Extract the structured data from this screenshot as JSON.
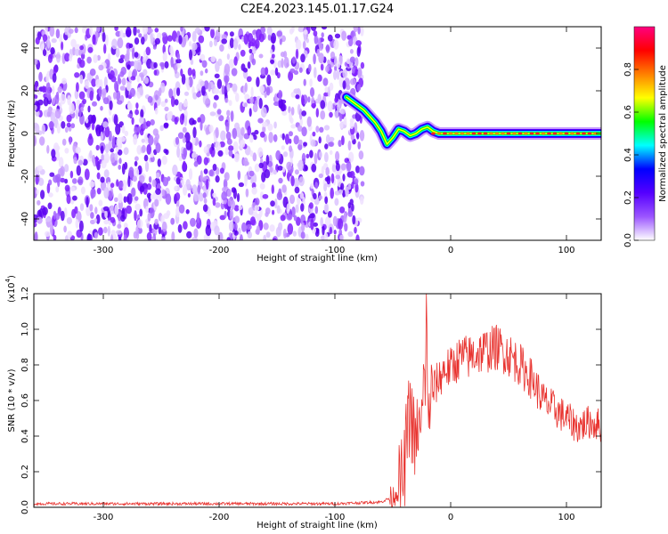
{
  "figure": {
    "title": "C2E4.2023.145.01.17.G24"
  },
  "chart_data": [
    {
      "type": "heatmap",
      "xlabel": "Height of straight line (km)",
      "ylabel": "Frequency (Hz)",
      "xlim": [
        -360,
        130
      ],
      "ylim": [
        -50,
        50
      ],
      "xticks": [
        -300,
        -200,
        -100,
        0,
        100
      ],
      "yticks": [
        -40,
        -20,
        0,
        20,
        40
      ],
      "noise_region_x": [
        -360,
        -80
      ],
      "signal_track": {
        "x": [
          -90,
          -85,
          -80,
          -75,
          -70,
          -65,
          -60,
          -55,
          -50,
          -45,
          -40,
          -35,
          -30,
          -25,
          -20,
          -15,
          -10,
          -5,
          0,
          20,
          40,
          60,
          80,
          100,
          120,
          130
        ],
        "y": [
          17,
          15,
          13,
          11,
          8,
          5,
          1,
          -5,
          -2,
          2,
          1,
          -1,
          0,
          2,
          3,
          1,
          0,
          0,
          0,
          0,
          0,
          0,
          0,
          0,
          0,
          0
        ]
      },
      "colorbar": {
        "label": "Normalized spectral amplitude",
        "range": [
          0,
          1
        ],
        "ticks": [
          "0.0",
          "0.2",
          "0.4",
          "0.6",
          "0.8"
        ],
        "colors": [
          "#ffffff",
          "#9b55ff",
          "#5500ff",
          "#0000ff",
          "#00ffff",
          "#00ff00",
          "#ffff00",
          "#ff8000",
          "#ff0000",
          "#ff0080"
        ]
      }
    },
    {
      "type": "line",
      "xlabel": "Height of straight line (km)",
      "ylabel": "SNR (10 * v/v)",
      "yscale_label": "(x10",
      "yscale_exp": "4",
      "xlim": [
        -360,
        130
      ],
      "ylim": [
        0,
        1.2
      ],
      "xticks": [
        -300,
        -200,
        -100,
        0,
        100
      ],
      "yticks": [
        "0.0",
        "0.2",
        "0.4",
        "0.6",
        "0.8",
        "1.0",
        "1.2"
      ],
      "series": [
        {
          "color": "#e8332f",
          "x": [
            -360,
            -300,
            -200,
            -100,
            -60,
            -50,
            -45,
            -42,
            -40,
            -38,
            -35,
            -32,
            -30,
            -28,
            -26,
            -24,
            -22,
            -21,
            -20,
            -18,
            -15,
            -10,
            -5,
            0,
            5,
            10,
            15,
            20,
            30,
            40,
            50,
            60,
            70,
            80,
            90,
            100,
            110,
            120,
            130
          ],
          "y": [
            0.02,
            0.02,
            0.02,
            0.02,
            0.03,
            0.06,
            0.1,
            0.15,
            0.2,
            0.4,
            0.55,
            0.4,
            0.3,
            0.5,
            0.35,
            0.6,
            0.75,
            1.2,
            0.5,
            0.6,
            0.66,
            0.72,
            0.78,
            0.78,
            0.82,
            0.85,
            0.84,
            0.86,
            0.88,
            0.9,
            0.86,
            0.8,
            0.72,
            0.6,
            0.55,
            0.5,
            0.45,
            0.48,
            0.46
          ]
        }
      ]
    }
  ]
}
